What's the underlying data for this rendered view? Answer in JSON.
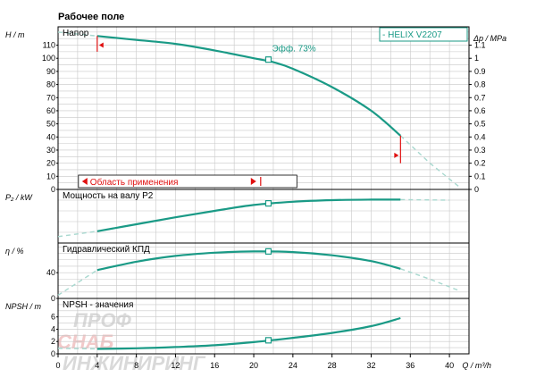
{
  "title": "Рабочее поле",
  "colors": {
    "curve": "#1a9a86",
    "ghost": "#a8d8cf",
    "grid": "#c8c8c8",
    "red": "#e01010",
    "watermark": "#d9d9d9"
  },
  "watermark": {
    "line1": "ПРОФ",
    "line2": "СНАБ",
    "line3": "ИНЖИНИРИНГ"
  },
  "chart_data": [
    {
      "type": "line",
      "panel": "head",
      "ylabel": "H / m",
      "y2label": "Δp / MPa",
      "panel_label": "Напор",
      "legend": "- HELIX V2207",
      "annotation": "Эфф. 73%",
      "range_label": "Область применения",
      "xlim": [
        0,
        42
      ],
      "ylim": [
        0,
        124
      ],
      "yticks": [
        0,
        10,
        20,
        30,
        40,
        50,
        60,
        70,
        80,
        90,
        100,
        110
      ],
      "y2ticks": [
        "0",
        "0.1",
        "0.2",
        "0.3",
        "0.4",
        "0.5",
        "0.6",
        "0.7",
        "0.8",
        "0.9",
        "1",
        "1.1"
      ],
      "x": [
        4,
        8,
        12,
        16,
        20,
        22,
        24,
        28,
        32,
        35
      ],
      "y": [
        117,
        114,
        111,
        106,
        100,
        97,
        92,
        78,
        60,
        41
      ],
      "ghost_x": [
        0,
        4,
        35,
        38,
        41
      ],
      "ghost_y": [
        120,
        117,
        41,
        20,
        2
      ],
      "op_point": [
        21.5,
        99
      ],
      "range": [
        4,
        35
      ]
    },
    {
      "type": "line",
      "panel": "power",
      "ylabel": "P₂ / kW",
      "panel_label": "Мощность на валу P2",
      "xlim": [
        0,
        42
      ],
      "ylim": [
        0,
        1
      ],
      "x": [
        4,
        8,
        12,
        16,
        20,
        24,
        28,
        32,
        35
      ],
      "y": [
        0.22,
        0.35,
        0.48,
        0.6,
        0.71,
        0.77,
        0.8,
        0.81,
        0.81
      ],
      "ghost_x": [
        0,
        4,
        35,
        40
      ],
      "ghost_y": [
        0.12,
        0.22,
        0.81,
        0.8
      ],
      "op_point": [
        21.5,
        0.74
      ]
    },
    {
      "type": "line",
      "panel": "efficiency",
      "ylabel": "η / %",
      "panel_label": "Гидравлический КПД",
      "xlim": [
        0,
        42
      ],
      "ylim": [
        0,
        86
      ],
      "yticks": [
        0,
        40
      ],
      "x": [
        4,
        8,
        12,
        16,
        20,
        24,
        28,
        32,
        35
      ],
      "y": [
        44,
        57,
        66,
        71,
        73,
        72,
        67,
        58,
        46
      ],
      "ghost_x": [
        0,
        4,
        35,
        38,
        41
      ],
      "ghost_y": [
        5,
        44,
        46,
        30,
        12
      ],
      "op_point": [
        21.5,
        73
      ]
    },
    {
      "type": "line",
      "panel": "npsh",
      "ylabel": "NPSH / m",
      "panel_label": "NPSH - значения",
      "xlim": [
        0,
        42
      ],
      "ylim": [
        0,
        9
      ],
      "yticks": [
        0,
        2,
        4,
        6
      ],
      "x": [
        4,
        8,
        12,
        16,
        20,
        24,
        28,
        32,
        35
      ],
      "y": [
        0.8,
        0.9,
        1.1,
        1.4,
        1.9,
        2.6,
        3.4,
        4.5,
        5.8
      ],
      "ghost_x": [
        0,
        4
      ],
      "ghost_y": [
        0.9,
        0.8
      ],
      "op_point": [
        21.5,
        2.2
      ]
    }
  ],
  "xaxis": {
    "label": "Q / m³/h",
    "ticks": [
      "0",
      "4",
      "8",
      "12",
      "16",
      "20",
      "24",
      "28",
      "32",
      "36",
      "40"
    ],
    "tick_values": [
      0,
      4,
      8,
      12,
      16,
      20,
      24,
      28,
      32,
      36,
      40
    ]
  }
}
